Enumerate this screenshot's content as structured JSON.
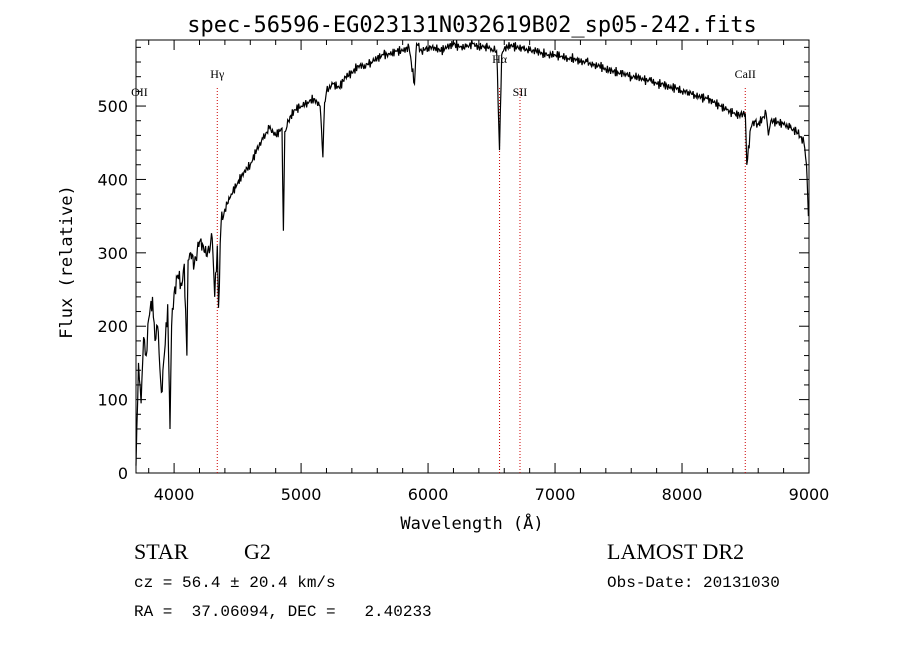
{
  "chart_data": {
    "type": "line",
    "title": "spec-56596-EG023131N032619B02_sp05-242.fits",
    "xlabel": "Wavelength (Å)",
    "ylabel": "Flux (relative)",
    "xlim": [
      3700,
      9000
    ],
    "ylim": [
      0,
      590
    ],
    "x_ticks": [
      4000,
      5000,
      6000,
      7000,
      8000,
      9000
    ],
    "y_ticks": [
      0,
      100,
      200,
      300,
      400,
      500
    ],
    "grid": false,
    "line_color": "#000000",
    "marker_color": "#cc0000",
    "series": [
      {
        "x": [
          3700,
          3720,
          3740,
          3760,
          3780,
          3800,
          3830,
          3850,
          3870,
          3900,
          3930,
          3950,
          3968,
          3980,
          4000,
          4030,
          4060,
          4080,
          4101,
          4110,
          4130,
          4160,
          4200,
          4230,
          4260,
          4300,
          4320,
          4340,
          4350,
          4370,
          4400,
          4450,
          4500,
          4550,
          4600,
          4650,
          4700,
          4750,
          4800,
          4850,
          4861,
          4872,
          4900,
          4950,
          5000,
          5050,
          5100,
          5150,
          5172,
          5185,
          5200,
          5250,
          5300,
          5350,
          5400,
          5450,
          5500,
          5550,
          5600,
          5650,
          5700,
          5750,
          5800,
          5850,
          5893,
          5910,
          5950,
          6000,
          6050,
          6100,
          6150,
          6200,
          6250,
          6300,
          6350,
          6400,
          6450,
          6500,
          6540,
          6563,
          6580,
          6600,
          6650,
          6700,
          6750,
          6800,
          6850,
          6900,
          6950,
          7000,
          7050,
          7100,
          7150,
          7200,
          7250,
          7300,
          7350,
          7400,
          7450,
          7500,
          7550,
          7600,
          7650,
          7700,
          7750,
          7800,
          7850,
          7900,
          7950,
          8000,
          8050,
          8100,
          8150,
          8200,
          8250,
          8300,
          8350,
          8400,
          8450,
          8498,
          8510,
          8542,
          8560,
          8600,
          8662,
          8680,
          8700,
          8750,
          8800,
          8850,
          8900,
          8940,
          8960,
          8980,
          8995
        ],
        "y": [
          10,
          150,
          95,
          185,
          160,
          210,
          240,
          180,
          200,
          110,
          175,
          230,
          60,
          200,
          245,
          270,
          255,
          285,
          160,
          290,
          300,
          285,
          315,
          310,
          295,
          320,
          240,
          310,
          225,
          340,
          360,
          380,
          395,
          410,
          420,
          440,
          455,
          470,
          460,
          470,
          330,
          465,
          480,
          495,
          500,
          505,
          510,
          500,
          430,
          505,
          520,
          530,
          525,
          540,
          545,
          555,
          555,
          560,
          565,
          570,
          570,
          575,
          575,
          580,
          530,
          585,
          575,
          580,
          580,
          575,
          580,
          585,
          580,
          580,
          585,
          580,
          582,
          578,
          575,
          440,
          570,
          578,
          583,
          580,
          578,
          575,
          575,
          572,
          570,
          570,
          568,
          565,
          565,
          560,
          560,
          555,
          555,
          550,
          548,
          545,
          545,
          540,
          540,
          535,
          535,
          530,
          530,
          525,
          525,
          520,
          520,
          515,
          512,
          510,
          505,
          500,
          495,
          490,
          488,
          490,
          420,
          470,
          480,
          475,
          490,
          460,
          480,
          478,
          475,
          470,
          465,
          458,
          450,
          420,
          350
        ]
      }
    ],
    "line_markers": [
      {
        "label": "OII",
        "wavelength": 3727,
        "style": "label-only"
      },
      {
        "label": "Hγ",
        "wavelength": 4340,
        "style": "dotted"
      },
      {
        "label": "Hα",
        "wavelength": 6563,
        "style": "dotted"
      },
      {
        "label": "SII",
        "wavelength": 6724,
        "style": "dotted"
      },
      {
        "label": "CaII",
        "wavelength": 8498,
        "style": "dotted"
      }
    ]
  },
  "info": {
    "class_label": "STAR",
    "subclass_label": "G2",
    "survey_label": "LAMOST DR2",
    "redshift_text": "cz = 56.4 ± 20.4 km/s",
    "obs_date_text": "Obs-Date: 20131030",
    "coords_text": "RA =  37.06094, DEC =   2.40233"
  }
}
